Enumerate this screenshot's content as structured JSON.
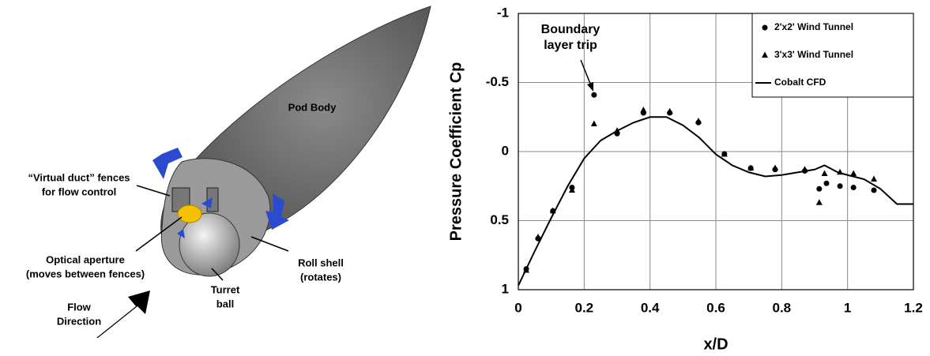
{
  "diagram": {
    "labels": [
      {
        "lines": [
          "Pod Body"
        ]
      },
      {
        "lines": [
          "“Virtual duct” fences",
          "for flow control"
        ]
      },
      {
        "lines": [
          "Optical aperture",
          "(moves between fences)"
        ]
      },
      {
        "lines": [
          "Turret",
          "ball"
        ]
      },
      {
        "lines": [
          "Roll shell",
          "(rotates)"
        ]
      },
      {
        "lines": [
          "Flow",
          "Direction"
        ]
      }
    ]
  },
  "chart_data": {
    "type": "scatter",
    "xlabel": "x/D",
    "ylabel": "Pressure Coefficient Cp",
    "annotation": [
      "Boundary",
      "layer trip"
    ],
    "xlim": [
      0,
      1.2
    ],
    "xticks": [
      0,
      0.2,
      0.4,
      0.6,
      0.8,
      1,
      1.2
    ],
    "ylim": [
      -1,
      1
    ],
    "yticks": [
      -1,
      -0.5,
      0,
      0.5,
      1
    ],
    "y_inverted": true,
    "grid": true,
    "legend": "upper right",
    "series": [
      {
        "name": "2'x2' Wind Tunnel",
        "marker": "circle",
        "color": "#000000",
        "x": [
          0.024,
          0.06,
          0.105,
          0.163,
          0.23,
          0.3,
          0.38,
          0.46,
          0.547,
          0.626,
          0.706,
          0.78,
          0.87,
          0.914,
          0.936,
          0.977,
          1.018,
          1.08
        ],
        "values": [
          0.85,
          0.63,
          0.43,
          0.26,
          -0.41,
          -0.13,
          -0.28,
          -0.28,
          -0.21,
          0.017,
          0.12,
          0.13,
          0.14,
          0.27,
          0.23,
          0.25,
          0.26,
          0.28
        ]
      },
      {
        "name": "3'x3' Wind Tunnel",
        "marker": "triangle",
        "color": "#000000",
        "x": [
          0.024,
          0.06,
          0.105,
          0.163,
          0.23,
          0.3,
          0.38,
          0.46,
          0.547,
          0.626,
          0.706,
          0.78,
          0.87,
          0.914,
          0.93,
          0.977,
          1.018,
          1.08
        ],
        "values": [
          0.86,
          0.62,
          0.43,
          0.28,
          -0.2,
          -0.15,
          -0.3,
          -0.29,
          -0.22,
          0.02,
          0.12,
          0.12,
          0.13,
          0.37,
          0.16,
          0.15,
          0.16,
          0.2
        ]
      },
      {
        "name": "Cobalt CFD",
        "marker": "line",
        "color": "#000000",
        "x": [
          0,
          0.05,
          0.1,
          0.15,
          0.2,
          0.25,
          0.3,
          0.35,
          0.4,
          0.45,
          0.5,
          0.55,
          0.6,
          0.65,
          0.7,
          0.75,
          0.8,
          0.85,
          0.9,
          0.93,
          0.97,
          1.0,
          1.05,
          1.1,
          1.15,
          1.2
        ],
        "values": [
          0.97,
          0.72,
          0.48,
          0.25,
          0.05,
          -0.08,
          -0.15,
          -0.21,
          -0.25,
          -0.25,
          -0.19,
          -0.1,
          0.02,
          0.1,
          0.15,
          0.18,
          0.17,
          0.15,
          0.13,
          0.1,
          0.15,
          0.17,
          0.2,
          0.27,
          0.38,
          0.38
        ]
      }
    ]
  }
}
